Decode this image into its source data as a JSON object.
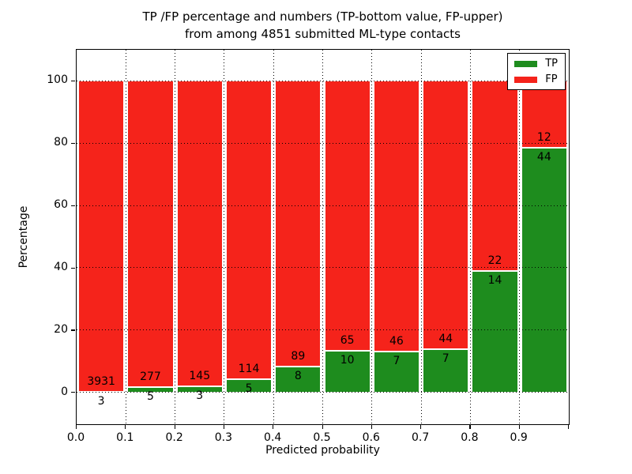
{
  "title": {
    "line1": "TP /FP percentage and numbers (TP-bottom value, FP-upper)",
    "line2": "from among 4851 submitted ML-type contacts"
  },
  "chart_data": {
    "type": "bar",
    "stacked": true,
    "normalized_to_percent": true,
    "title": "TP /FP percentage and numbers (TP-bottom value, FP-upper) from among 4851 submitted ML-type contacts",
    "xlabel": "Predicted probability",
    "ylabel": "Percentage",
    "bin_edges": [
      0.0,
      0.1,
      0.2,
      0.3,
      0.4,
      0.5,
      0.6,
      0.7,
      0.8,
      0.9,
      1.0
    ],
    "categories": [
      "0.0-0.1",
      "0.1-0.2",
      "0.2-0.3",
      "0.3-0.4",
      "0.4-0.5",
      "0.5-0.6",
      "0.6-0.7",
      "0.7-0.8",
      "0.8-0.9",
      "0.9-1.0"
    ],
    "series": [
      {
        "name": "TP",
        "color": "#1e8c1e",
        "values": [
          3,
          5,
          3,
          5,
          8,
          10,
          7,
          7,
          14,
          44
        ]
      },
      {
        "name": "FP",
        "color": "#f5231b",
        "values": [
          3931,
          277,
          145,
          114,
          89,
          65,
          46,
          44,
          22,
          12
        ]
      }
    ],
    "bar_value_labels_note": "TP count shown just below the TP/FP boundary, FP count just above it; each bar totals 100%",
    "total_contacts": 4851,
    "xlim": [
      0.0,
      1.0
    ],
    "ylim": [
      -10,
      110
    ],
    "xtick_labels": [
      "0.0",
      "0.1",
      "0.2",
      "0.3",
      "0.4",
      "0.5",
      "0.6",
      "0.7",
      "0.8",
      "0.9"
    ],
    "ytick_values": [
      0,
      20,
      40,
      60,
      80,
      100
    ],
    "grid": true,
    "grid_style": "dotted",
    "legend_position": "upper right"
  },
  "legend": {
    "items": [
      {
        "label": "TP",
        "color": "#1e8c1e"
      },
      {
        "label": "FP",
        "color": "#f5231b"
      }
    ]
  },
  "colors": {
    "tp_green": "#1e8c1e",
    "fp_red": "#f5231b",
    "text": "#000000",
    "background": "#ffffff"
  }
}
